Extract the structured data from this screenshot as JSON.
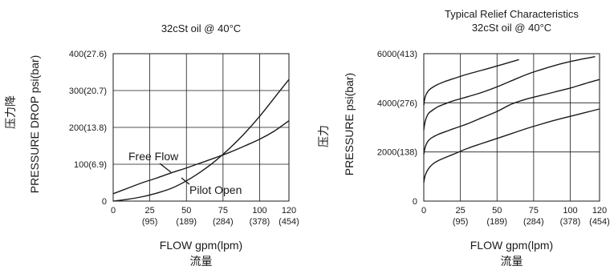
{
  "chart_data": [
    {
      "type": "line",
      "title": "32cSt  oil @ 40°C",
      "xlabel": "FLOW gpm(lpm)",
      "xlabel_cn": "流量",
      "ylabel": "PRESSURE DROP  psi(bar)",
      "ylabel_cn": "压力降",
      "xlim": [
        0,
        120
      ],
      "ylim": [
        0,
        400
      ],
      "x_ticks": [
        0,
        25,
        50,
        75,
        100,
        120
      ],
      "x_tick_labels": [
        "0",
        "25",
        "50",
        "75",
        "100",
        "120"
      ],
      "x_tick_sublabels": [
        "",
        "(95)",
        "(189)",
        "(284)",
        "(378)",
        "(454)"
      ],
      "y_ticks": [
        0,
        100,
        200,
        300,
        400
      ],
      "y_tick_labels": [
        "0",
        "100(6.9)",
        "200(13.8)",
        "300(20.7)",
        "400(27.6)"
      ],
      "grid": true,
      "series": [
        {
          "name": "Free Flow",
          "x": [
            0,
            10,
            20,
            30,
            40,
            50,
            60,
            70,
            80,
            90,
            100,
            110,
            120
          ],
          "y": [
            20,
            35,
            50,
            63,
            77,
            90,
            104,
            118,
            133,
            150,
            168,
            190,
            218
          ]
        },
        {
          "name": "Pilot Open",
          "x": [
            0,
            10,
            20,
            30,
            40,
            50,
            60,
            70,
            80,
            90,
            100,
            110,
            120
          ],
          "y": [
            0,
            5,
            12,
            22,
            35,
            55,
            80,
            110,
            145,
            185,
            230,
            280,
            330
          ]
        }
      ]
    },
    {
      "type": "line",
      "title": "Typical Relief Characteristics",
      "subtitle": "32cSt  oil @ 40°C",
      "xlabel": "FLOW gpm(lpm)",
      "xlabel_cn": "流量",
      "ylabel": "PRESSURE  psi(bar)",
      "ylabel_cn": "压力",
      "xlim": [
        0,
        120
      ],
      "ylim": [
        0,
        6000
      ],
      "x_ticks": [
        0,
        25,
        50,
        75,
        100,
        120
      ],
      "x_tick_labels": [
        "0",
        "25",
        "50",
        "75",
        "100",
        "120"
      ],
      "x_tick_sublabels": [
        "",
        "(95)",
        "(189)",
        "(284)",
        "(378)",
        "(454)"
      ],
      "y_ticks": [
        0,
        2000,
        4000,
        6000
      ],
      "y_tick_labels": [
        "0",
        "2000(138)",
        "4000(276)",
        "6000(413)"
      ],
      "grid": true,
      "series": [
        {
          "x": [
            0,
            1,
            3,
            6,
            10,
            15,
            20,
            30,
            40,
            50,
            60,
            70,
            80,
            90,
            100,
            110,
            120
          ],
          "y": [
            750,
            1050,
            1300,
            1500,
            1650,
            1780,
            1900,
            2150,
            2350,
            2550,
            2750,
            2950,
            3130,
            3300,
            3450,
            3600,
            3750
          ]
        },
        {
          "x": [
            0,
            1,
            3,
            6,
            10,
            15,
            20,
            30,
            40,
            50,
            60,
            70,
            80,
            90,
            100,
            110,
            120
          ],
          "y": [
            1900,
            2200,
            2450,
            2600,
            2720,
            2830,
            2940,
            3150,
            3400,
            3650,
            3950,
            4150,
            4300,
            4450,
            4600,
            4780,
            4950
          ]
        },
        {
          "x": [
            0,
            1,
            3,
            6,
            10,
            15,
            20,
            30,
            40,
            50,
            60,
            70,
            80,
            90,
            100,
            110,
            117
          ],
          "y": [
            2900,
            3250,
            3550,
            3700,
            3850,
            3970,
            4080,
            4250,
            4430,
            4650,
            4900,
            5150,
            5350,
            5530,
            5680,
            5800,
            5880
          ]
        },
        {
          "x": [
            0,
            1,
            3,
            6,
            10,
            15,
            20,
            30,
            40,
            50,
            60,
            65
          ],
          "y": [
            3900,
            4250,
            4480,
            4630,
            4760,
            4880,
            4980,
            5170,
            5330,
            5500,
            5670,
            5760
          ]
        }
      ]
    }
  ]
}
